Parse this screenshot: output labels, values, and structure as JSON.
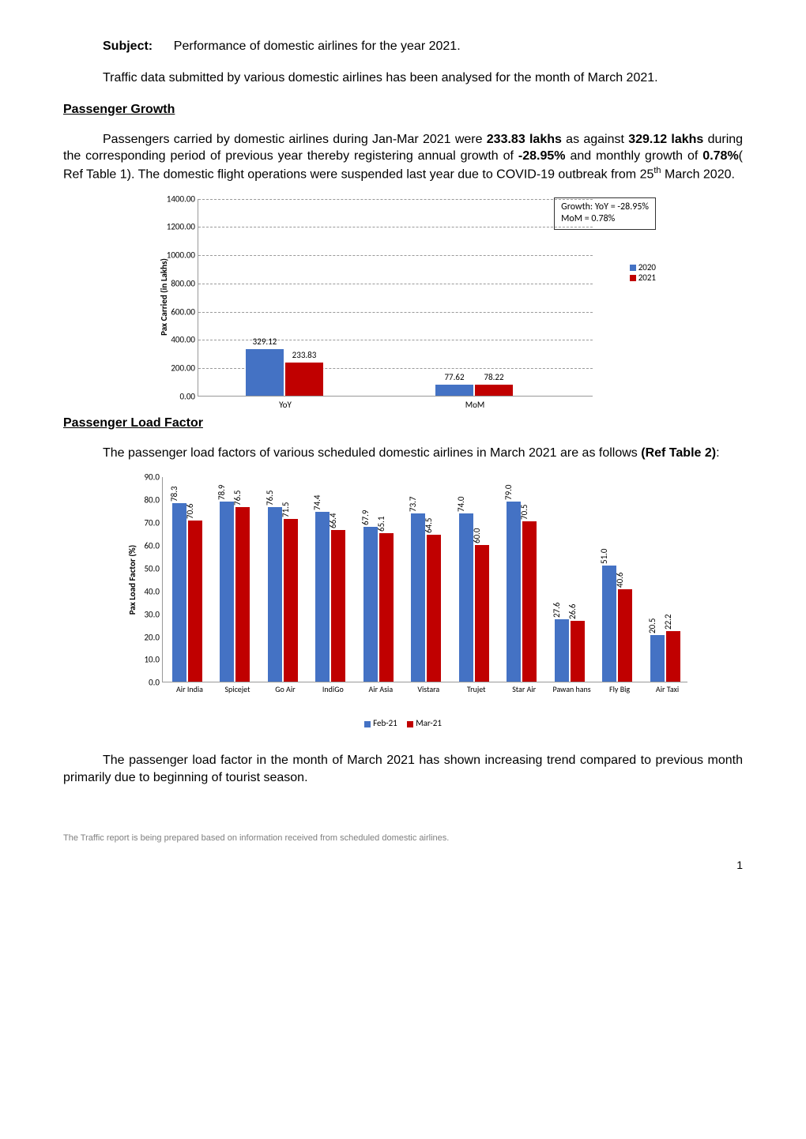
{
  "subject": {
    "label": "Subject",
    "text": "Performance of domestic airlines for the year 2021."
  },
  "intro_para": "Traffic data submitted by various domestic airlines has been analysed for the month of March 2021.",
  "section1": {
    "heading": "Passenger Growth",
    "para_parts": {
      "p1": "Passengers carried by domestic airlines during Jan-Mar 2021 were ",
      "v1": "233.83 lakhs",
      "p2": " as against ",
      "v2": "329.12 lakhs",
      "p3": " during the corresponding period of previous year thereby registering annual growth of ",
      "v3": "-28.95%",
      "p4": " and monthly growth of ",
      "v4": "0.78%",
      "p5": "( Ref Table 1). The domestic flight operations were suspended last year due to COVID-19 outbreak from 25",
      "sup": "th",
      "p6": " March 2020."
    }
  },
  "chart1": {
    "type": "bar",
    "ylabel": "Pax Carried (in Lakhs)",
    "ylim": [
      0,
      1400
    ],
    "ytick_step": 200,
    "yticks": [
      "0.00",
      "200.00",
      "400.00",
      "600.00",
      "800.00",
      "1000.00",
      "1200.00",
      "1400.00"
    ],
    "grid_color": "#9a9a9a",
    "colors": {
      "2020": "#4472c4",
      "2021": "#c00000"
    },
    "legend": {
      "a": "2020",
      "b": "2021"
    },
    "categories": [
      "YoY",
      "MoM"
    ],
    "data": {
      "YoY": {
        "2020": 329.12,
        "2021": 233.83,
        "lbl2020": "329.12",
        "lbl2021": "233.83"
      },
      "MoM": {
        "2020": 77.62,
        "2021": 78.22,
        "lbl2020": "77.62",
        "lbl2021": "78.22"
      }
    },
    "infobox": {
      "l1": "Growth:  YoY  = -28.95%",
      "l2": "MoM = 0.78%"
    }
  },
  "section2": {
    "heading": "Passenger Load Factor",
    "para_parts": {
      "p1": "The passenger load factors of various scheduled domestic airlines in March 2021 are as follows ",
      "v1": "(Ref Table 2)",
      "p2": ":"
    },
    "closing": "The passenger load factor in the month of March 2021 has shown increasing trend compared to previous month primarily due to beginning of tourist season."
  },
  "chart2": {
    "type": "bar",
    "ylabel": "Pax Load Factor (%)",
    "ylim": [
      0,
      90
    ],
    "ytick_step": 10,
    "yticks": [
      "0.0",
      "10.0",
      "20.0",
      "30.0",
      "40.0",
      "50.0",
      "60.0",
      "70.0",
      "80.0",
      "90.0"
    ],
    "colors": {
      "feb": "#4472c4",
      "mar": "#c00000"
    },
    "legend": {
      "a": "Feb-21",
      "b": "Mar-21"
    },
    "airlines": [
      "Air India",
      "Spicejet",
      "Go Air",
      "IndiGo",
      "Air Asia",
      "Vistara",
      "Trujet",
      "Star Air",
      "Pawan hans",
      "Fly Big",
      "Air Taxi"
    ],
    "feb": [
      78.3,
      78.9,
      76.5,
      74.4,
      67.9,
      73.7,
      74.0,
      79.0,
      27.6,
      51.0,
      20.5
    ],
    "mar": [
      70.6,
      76.5,
      71.5,
      66.4,
      65.1,
      64.5,
      60.0,
      70.5,
      26.6,
      40.6,
      22.2
    ],
    "feb_lbl": [
      "78.3",
      "78.9",
      "76.5",
      "74.4",
      "67.9",
      "73.7",
      "74.0",
      "79.0",
      "27.6",
      "51.0",
      "20.5"
    ],
    "mar_lbl": [
      "70.6",
      "76.5",
      "71.5",
      "66.4",
      "65.1",
      "64.5",
      "60.0",
      "70.5",
      "26.6",
      "40.6",
      "22.2"
    ]
  },
  "footnote": "The Traffic report is being prepared based on information received from scheduled domestic airlines.",
  "pagenum": "1"
}
